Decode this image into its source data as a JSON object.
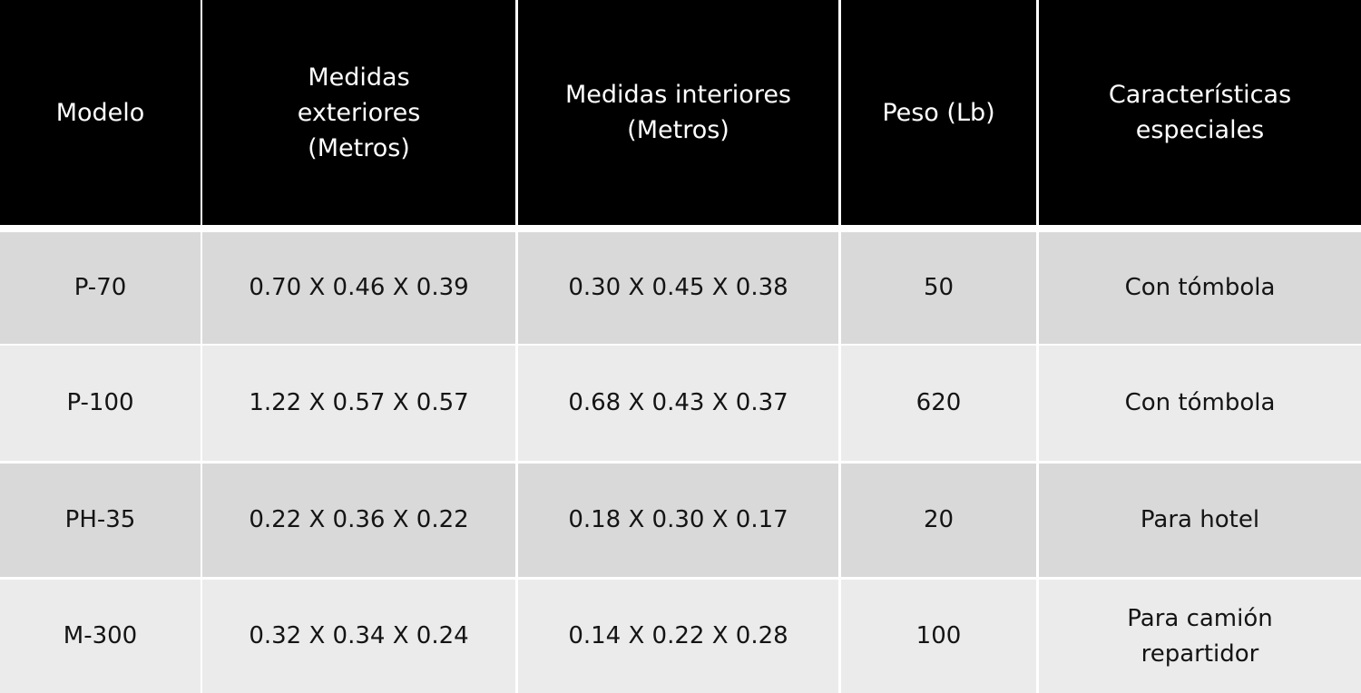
{
  "table": {
    "header": [
      [
        "Modelo"
      ],
      [
        "Medidas",
        "exteriores",
        "(Metros)"
      ],
      [
        "Medidas interiores",
        "(Metros)"
      ],
      [
        "Peso (Lb)"
      ],
      [
        "Características",
        "especiales"
      ]
    ],
    "rows": [
      [
        "P-70",
        "0.70 X 0.46 X 0.39",
        "0.30 X 0.45 X 0.38",
        "50",
        "Con tómbola"
      ],
      [
        "P-100",
        "1.22 X 0.57 X 0.57",
        "0.68 X 0.43 X 0.37",
        "620",
        "Con tómbola"
      ],
      [
        "PH-35",
        "0.22 X 0.36 X 0.22",
        "0.18 X 0.30 X 0.17",
        "20",
        "Para hotel"
      ],
      [
        "M-300",
        "0.32 X 0.34 X 0.24",
        "0.14 X 0.22 X 0.28",
        "100",
        "Para camión repartidor"
      ]
    ]
  }
}
